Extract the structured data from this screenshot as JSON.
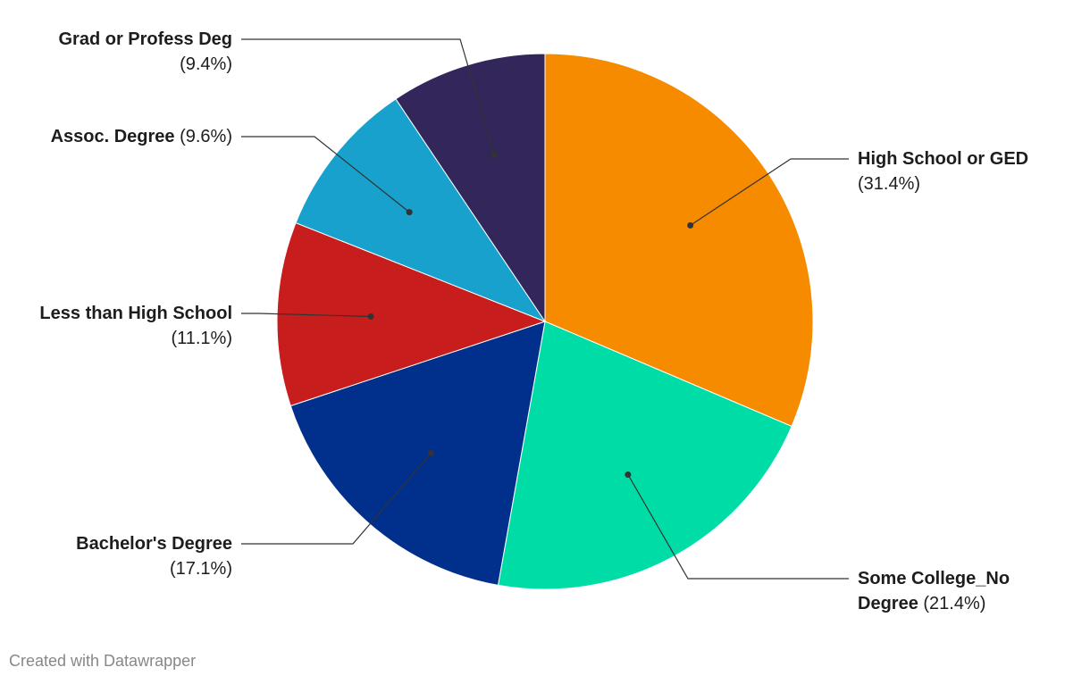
{
  "chart_data": {
    "type": "pie",
    "categories": [
      "High School or GED",
      "Some College_No Degree",
      "Bachelor's Degree",
      "Less than High School",
      "Assoc. Degree",
      "Grad or Profess Deg"
    ],
    "values": [
      31.4,
      21.4,
      17.1,
      11.1,
      9.6,
      9.4
    ],
    "value_labels": [
      "(31.4%)",
      "(21.4%)",
      "(17.1%)",
      "(11.1%)",
      "(9.6%)",
      "(9.4%)"
    ],
    "colors": [
      "#f68b00",
      "#00dca6",
      "#00308b",
      "#c71e1d",
      "#18a1cd",
      "#33265a"
    ],
    "footer": "Created with Datawrapper"
  }
}
